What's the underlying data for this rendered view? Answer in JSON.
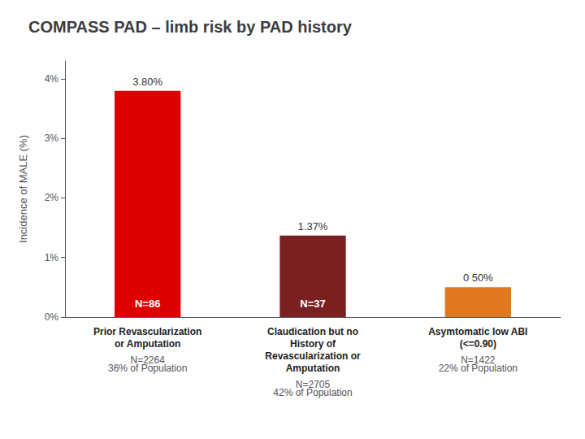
{
  "chart_data": {
    "type": "bar",
    "title": "COMPASS PAD – limb risk by PAD history",
    "ylabel": "Incidence of MALE (%)",
    "categories": [
      "Prior Revascularization\nor Amputation",
      "Claudication but no\nHistory of\nRevascularization or\nAmputation",
      "Asymtomatic low ABI\n(<=0.90)"
    ],
    "values": [
      3.8,
      1.37,
      0.5
    ],
    "value_labels": [
      "3.80%",
      "1.37%",
      "0 50%"
    ],
    "data_labels": true,
    "colors": [
      "#dd0000",
      "#7b2020",
      "#e07820"
    ],
    "inside_labels": [
      "N=86",
      "N=37",
      null
    ],
    "category_notes": [
      "N=2264\n36% of Population",
      "N=2705\n42% of Population",
      "N=1422\n22% of Population"
    ],
    "ylim": [
      0,
      4.3
    ],
    "yticks": [
      {
        "value": 0,
        "label": "0%"
      },
      {
        "value": 1,
        "label": "1%"
      },
      {
        "value": 2,
        "label": "2%"
      },
      {
        "value": 3,
        "label": "3%"
      },
      {
        "value": 4,
        "label": "4%"
      }
    ],
    "grid": false
  }
}
